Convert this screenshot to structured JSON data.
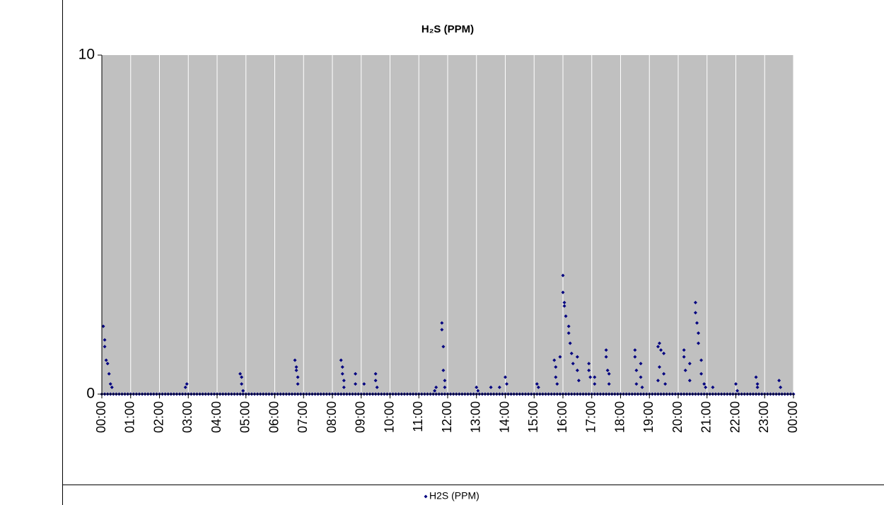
{
  "chart_data": {
    "type": "scatter",
    "title": "H₂S (PPM)",
    "xlim": [
      0,
      24
    ],
    "xticks": [
      {
        "value": 0,
        "label": "00:00"
      },
      {
        "value": 1,
        "label": "01:00"
      },
      {
        "value": 2,
        "label": "02:00"
      },
      {
        "value": 3,
        "label": "03:00"
      },
      {
        "value": 4,
        "label": "04:00"
      },
      {
        "value": 5,
        "label": "05:00"
      },
      {
        "value": 6,
        "label": "06:00"
      },
      {
        "value": 7,
        "label": "07:00"
      },
      {
        "value": 8,
        "label": "08:00"
      },
      {
        "value": 9,
        "label": "09:00"
      },
      {
        "value": 10,
        "label": "10:00"
      },
      {
        "value": 11,
        "label": "11:00"
      },
      {
        "value": 12,
        "label": "12:00"
      },
      {
        "value": 13,
        "label": "13:00"
      },
      {
        "value": 14,
        "label": "14:00"
      },
      {
        "value": 15,
        "label": "15:00"
      },
      {
        "value": 16,
        "label": "16:00"
      },
      {
        "value": 17,
        "label": "17:00"
      },
      {
        "value": 18,
        "label": "18:00"
      },
      {
        "value": 19,
        "label": "19:00"
      },
      {
        "value": 20,
        "label": "20:00"
      },
      {
        "value": 21,
        "label": "21:00"
      },
      {
        "value": 22,
        "label": "22:00"
      },
      {
        "value": 23,
        "label": "23:00"
      },
      {
        "value": 24,
        "label": "00:00"
      }
    ],
    "ylim": [
      0,
      10
    ],
    "yticks": [
      0,
      10
    ],
    "grid": true,
    "series": [
      {
        "name": "H2S (PPM)",
        "color": "#000080",
        "x": [
          0,
          0.1,
          0.2,
          0.3,
          0.4,
          0.5,
          0.6,
          0.7,
          0.8,
          0.9,
          1,
          1.1,
          1.2,
          1.3,
          1.4,
          1.5,
          1.6,
          1.7,
          1.8,
          1.9,
          2,
          2.1,
          2.2,
          2.3,
          2.4,
          2.5,
          2.6,
          2.7,
          2.8,
          2.9,
          3,
          3.1,
          3.2,
          3.3,
          3.4,
          3.5,
          3.6,
          3.7,
          3.8,
          3.9,
          4,
          4.1,
          4.2,
          4.3,
          4.4,
          4.5,
          4.6,
          4.7,
          4.8,
          4.9,
          5,
          5.1,
          5.2,
          5.3,
          5.4,
          5.5,
          5.6,
          5.7,
          5.8,
          5.9,
          6,
          6.1,
          6.2,
          6.3,
          6.4,
          6.5,
          6.6,
          6.7,
          6.8,
          6.9,
          7,
          7.1,
          7.2,
          7.3,
          7.4,
          7.5,
          7.6,
          7.7,
          7.8,
          7.9,
          8,
          8.1,
          8.2,
          8.3,
          8.4,
          8.5,
          8.6,
          8.7,
          8.8,
          8.9,
          9,
          9.1,
          9.2,
          9.3,
          9.4,
          9.5,
          9.6,
          9.7,
          9.8,
          9.9,
          10,
          10.1,
          10.2,
          10.3,
          10.4,
          10.5,
          10.6,
          10.7,
          10.8,
          10.9,
          11,
          11.1,
          11.2,
          11.3,
          11.4,
          11.5,
          11.6,
          11.7,
          11.8,
          11.9,
          12,
          12.1,
          12.2,
          12.3,
          12.4,
          12.5,
          12.6,
          12.7,
          12.8,
          12.9,
          13,
          13.1,
          13.2,
          13.3,
          13.4,
          13.5,
          13.6,
          13.7,
          13.8,
          13.9,
          14,
          14.1,
          14.2,
          14.3,
          14.4,
          14.5,
          14.6,
          14.7,
          14.8,
          14.9,
          15,
          15.1,
          15.2,
          15.3,
          15.4,
          15.5,
          15.6,
          15.7,
          15.8,
          15.9,
          16,
          16.1,
          16.2,
          16.3,
          16.4,
          16.5,
          16.6,
          16.7,
          16.8,
          16.9,
          17,
          17.1,
          17.2,
          17.3,
          17.4,
          17.5,
          17.6,
          17.7,
          17.8,
          17.9,
          18,
          18.1,
          18.2,
          18.3,
          18.4,
          18.5,
          18.6,
          18.7,
          18.8,
          18.9,
          19,
          19.1,
          19.2,
          19.3,
          19.4,
          19.5,
          19.6,
          19.7,
          19.8,
          19.9,
          20,
          20.1,
          20.2,
          20.3,
          20.4,
          20.5,
          20.6,
          20.7,
          20.8,
          20.9,
          21,
          21.1,
          21.2,
          21.3,
          21.4,
          21.5,
          21.6,
          21.7,
          21.8,
          21.9,
          22,
          22.1,
          22.2,
          22.3,
          22.4,
          22.5,
          22.6,
          22.7,
          22.8,
          22.9,
          23,
          23.1,
          23.2,
          23.3,
          23.4,
          23.5,
          23.6,
          23.7,
          23.8,
          23.9,
          24,
          0.05,
          0.1,
          0.1,
          0.15,
          0.2,
          0.25,
          0.3,
          0.35,
          2.9,
          2.95,
          4.8,
          4.85,
          4.85,
          4.9,
          6.7,
          6.75,
          6.75,
          6.8,
          6.8,
          8.3,
          8.35,
          8.35,
          8.4,
          8.4,
          8.8,
          8.8,
          9.1,
          9.5,
          9.5,
          9.55,
          11.55,
          11.6,
          11.8,
          11.8,
          11.85,
          11.85,
          11.9,
          11.9,
          13,
          13.05,
          13.5,
          13.8,
          14,
          14.05,
          15.1,
          15.15,
          15.7,
          15.75,
          15.75,
          15.8,
          15.9,
          16,
          16,
          16.05,
          16.05,
          16.1,
          16.2,
          16.2,
          16.25,
          16.3,
          16.35,
          16.5,
          16.5,
          16.55,
          16.9,
          16.9,
          16.95,
          17.1,
          17.1,
          17.5,
          17.5,
          17.55,
          17.6,
          17.6,
          18.5,
          18.5,
          18.55,
          18.55,
          18.7,
          18.7,
          18.75,
          19.3,
          19.35,
          19.4,
          19.35,
          19.3,
          19.5,
          19.5,
          19.55,
          20.2,
          20.2,
          20.25,
          20.4,
          20.4,
          20.6,
          20.6,
          20.65,
          20.7,
          20.7,
          20.8,
          20.8,
          20.9,
          20.95,
          21.2,
          22,
          22.05,
          22.7,
          22.75,
          22.75,
          23.5,
          23.55
        ],
        "values": [
          0,
          0,
          0,
          0,
          0,
          0,
          0,
          0,
          0,
          0,
          0,
          0,
          0,
          0,
          0,
          0,
          0,
          0,
          0,
          0,
          0,
          0,
          0,
          0,
          0,
          0,
          0,
          0,
          0,
          0,
          0,
          0,
          0,
          0,
          0,
          0,
          0,
          0,
          0,
          0,
          0,
          0,
          0,
          0,
          0,
          0,
          0,
          0,
          0,
          0,
          0,
          0,
          0,
          0,
          0,
          0,
          0,
          0,
          0,
          0,
          0,
          0,
          0,
          0,
          0,
          0,
          0,
          0,
          0,
          0,
          0,
          0,
          0,
          0,
          0,
          0,
          0,
          0,
          0,
          0,
          0,
          0,
          0,
          0,
          0,
          0,
          0,
          0,
          0,
          0,
          0,
          0,
          0,
          0,
          0,
          0,
          0,
          0,
          0,
          0,
          0,
          0,
          0,
          0,
          0,
          0,
          0,
          0,
          0,
          0,
          0,
          0,
          0,
          0,
          0,
          0,
          0,
          0,
          0,
          0,
          0,
          0,
          0,
          0,
          0,
          0,
          0,
          0,
          0,
          0,
          0,
          0,
          0,
          0,
          0,
          0,
          0,
          0,
          0,
          0,
          0,
          0,
          0,
          0,
          0,
          0,
          0,
          0,
          0,
          0,
          0,
          0,
          0,
          0,
          0,
          0,
          0,
          0,
          0,
          0,
          0,
          0,
          0,
          0,
          0,
          0,
          0,
          0,
          0,
          0,
          0,
          0,
          0,
          0,
          0,
          0,
          0,
          0,
          0,
          0,
          0,
          0,
          0,
          0,
          0,
          0,
          0,
          0,
          0,
          0,
          0,
          0,
          0,
          0,
          0,
          0,
          0,
          0,
          0,
          0,
          0,
          0,
          0,
          0,
          0,
          0,
          0,
          0,
          0,
          0,
          0,
          0,
          0,
          0,
          0,
          0,
          0,
          0,
          0,
          0,
          0,
          0,
          0,
          0,
          0,
          0,
          0,
          0,
          0,
          0,
          0,
          0,
          0,
          0,
          0,
          0,
          0,
          0,
          0,
          0,
          0,
          2.0,
          1.6,
          1.4,
          1.0,
          0.9,
          0.6,
          0.3,
          0.2,
          0.2,
          0.3,
          0.6,
          0.5,
          0.3,
          0.1,
          1.0,
          0.8,
          0.7,
          0.5,
          0.3,
          1.0,
          0.8,
          0.6,
          0.4,
          0.2,
          0.6,
          0.3,
          0.3,
          0.6,
          0.4,
          0.2,
          0.1,
          0.2,
          2.1,
          1.9,
          1.4,
          0.7,
          0.4,
          0.2,
          0.2,
          0.1,
          0.2,
          0.2,
          0.5,
          0.3,
          0.3,
          0.2,
          1.0,
          0.8,
          0.5,
          0.3,
          1.1,
          3.5,
          3.0,
          2.7,
          2.6,
          2.3,
          2.0,
          1.8,
          1.5,
          1.2,
          0.9,
          1.1,
          0.7,
          0.4,
          0.9,
          0.7,
          0.5,
          0.5,
          0.3,
          1.3,
          1.1,
          0.7,
          0.6,
          0.3,
          1.3,
          1.1,
          0.7,
          0.3,
          0.9,
          0.5,
          0.2,
          1.4,
          1.5,
          1.3,
          0.8,
          0.4,
          1.2,
          0.6,
          0.3,
          1.3,
          1.1,
          0.7,
          0.9,
          0.4,
          2.7,
          2.4,
          2.1,
          1.8,
          1.5,
          1.0,
          0.6,
          0.3,
          0.2,
          0.2,
          0.3,
          0.1,
          0.5,
          0.3,
          0.2,
          0.4,
          0.2
        ]
      }
    ]
  }
}
